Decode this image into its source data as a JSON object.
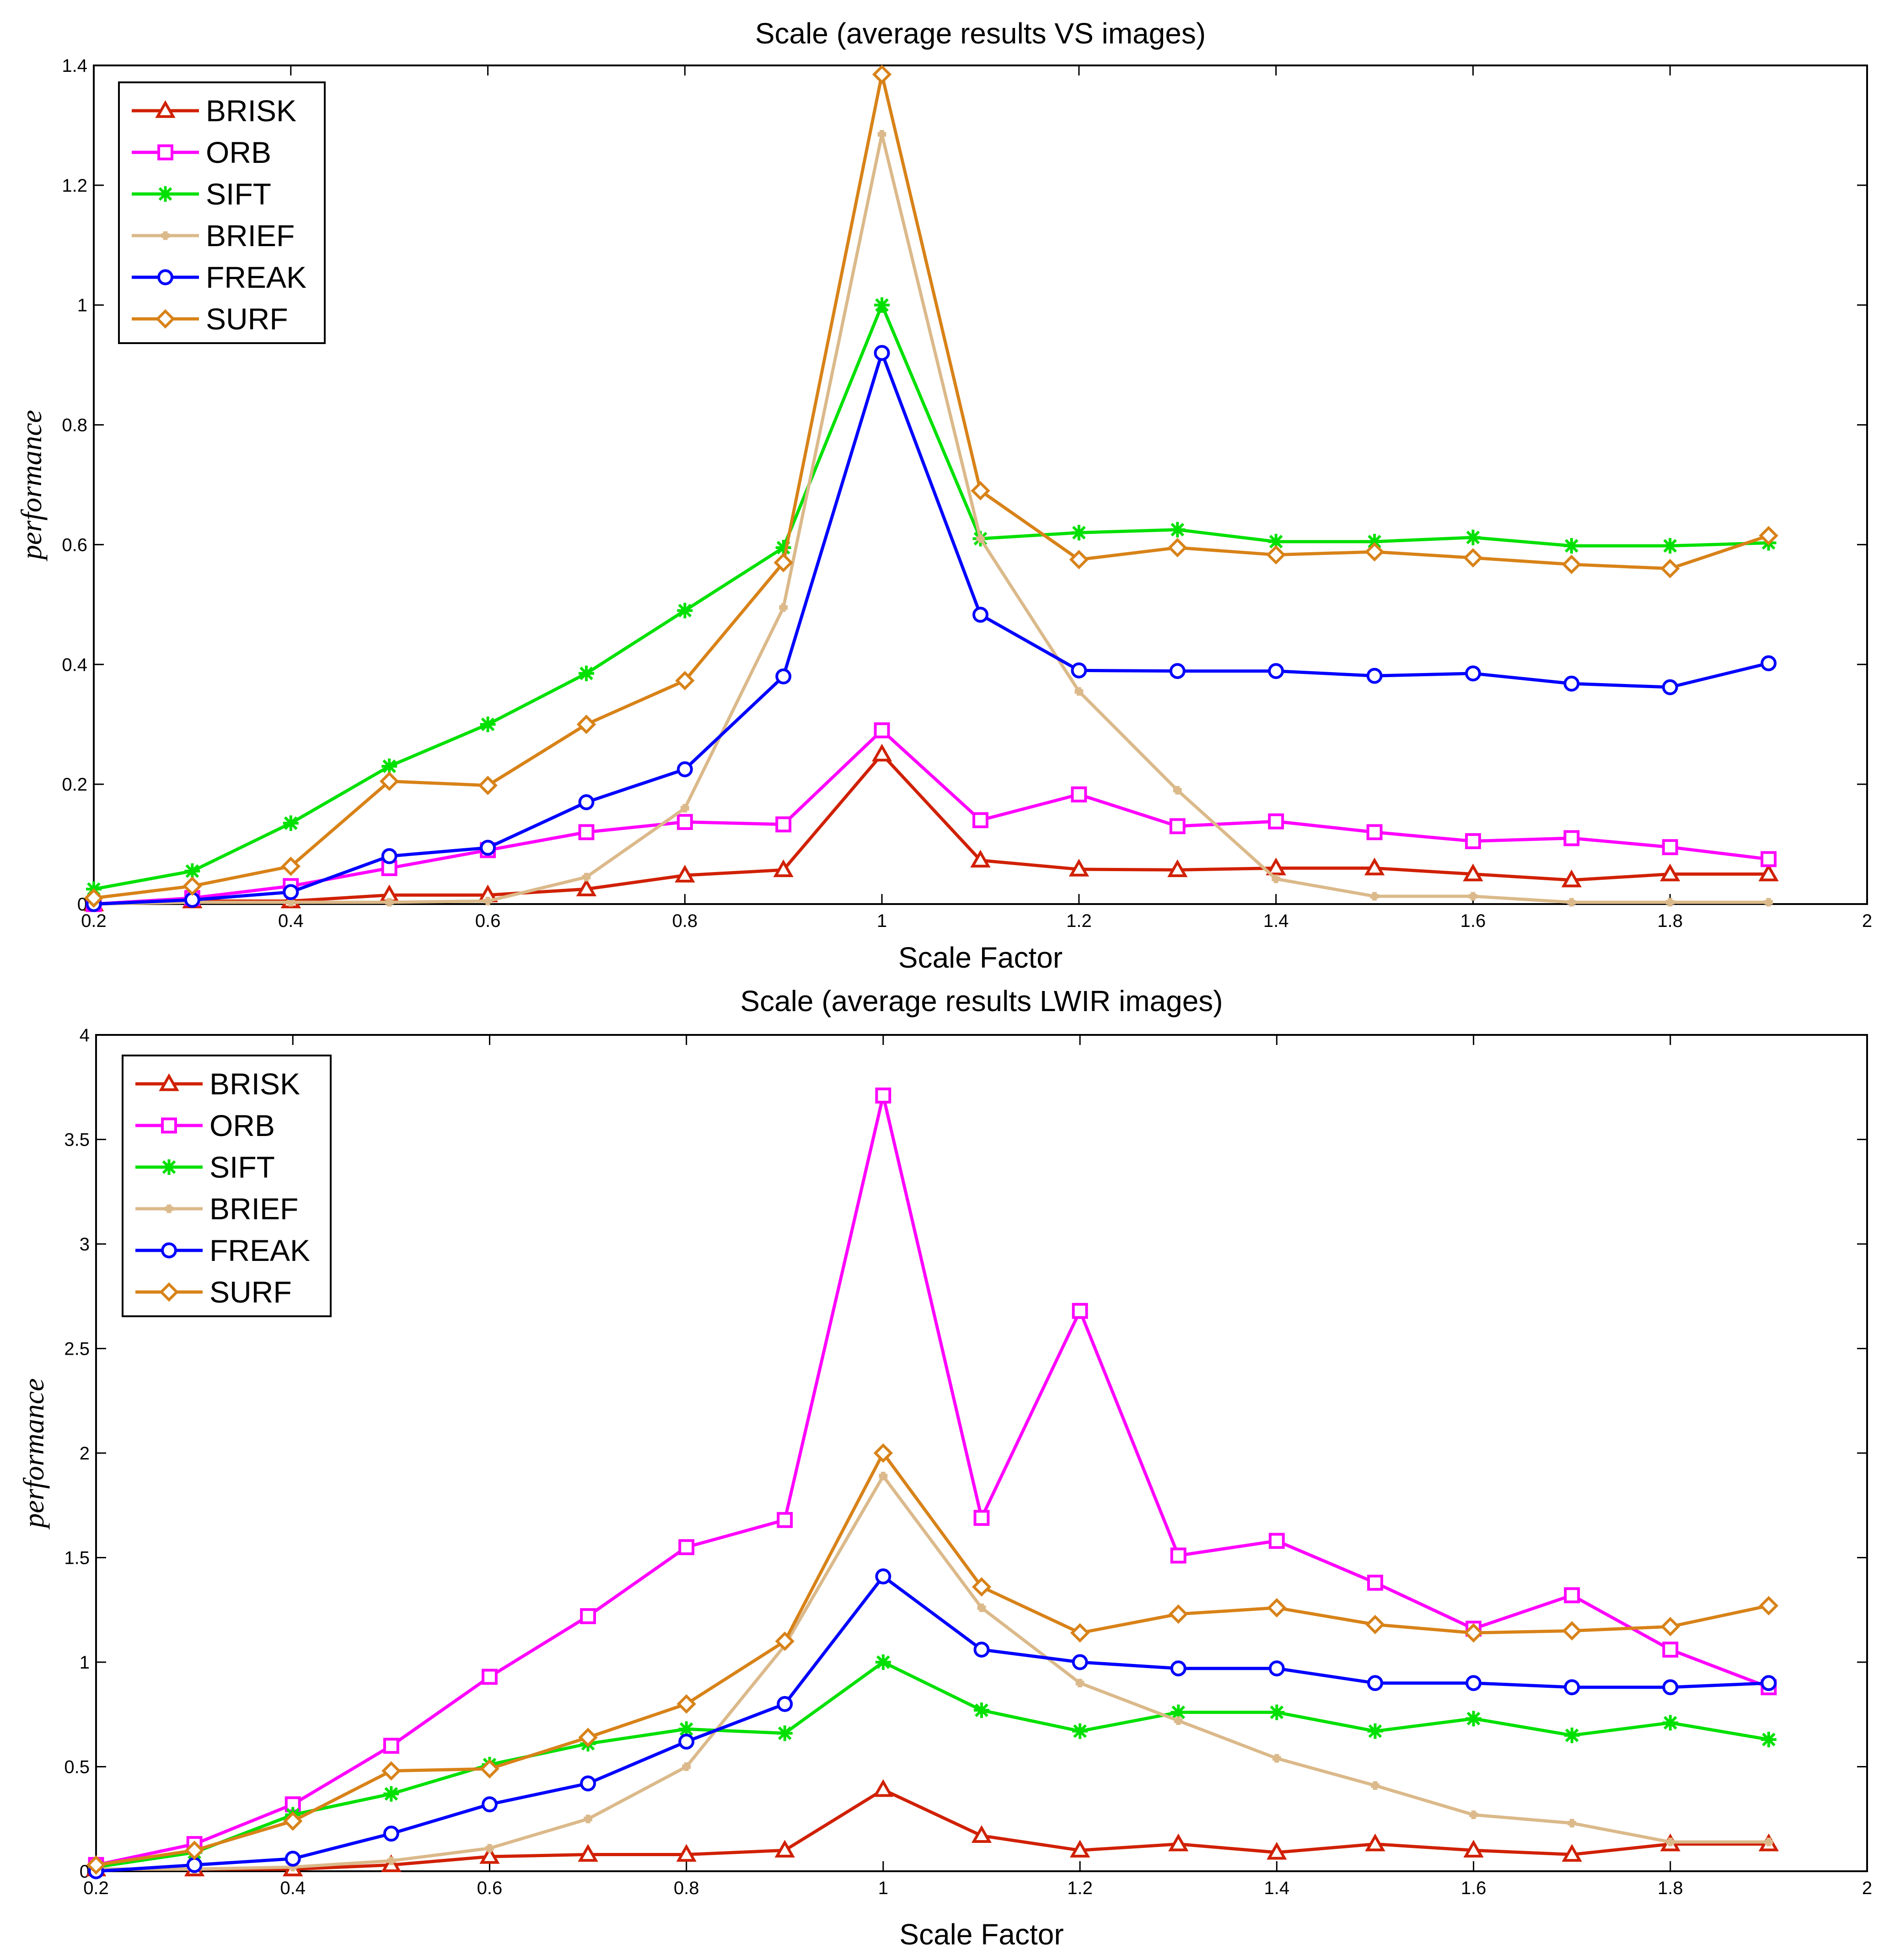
{
  "chart_data": [
    {
      "type": "line",
      "title": "Scale (average results VS images)",
      "xlabel": "Scale Factor",
      "ylabel": "performance",
      "xlim": [
        0.2,
        2
      ],
      "ylim": [
        0,
        1.4
      ],
      "xticks": [
        "0.2",
        "0.4",
        "0.6",
        "0.8",
        "1",
        "1.2",
        "1.4",
        "1.6",
        "1.8",
        "2"
      ],
      "yticks": [
        "0",
        "0.2",
        "0.4",
        "0.6",
        "0.8",
        "1",
        "1.2",
        "1.4"
      ],
      "legend_position": "top-left",
      "x": [
        0.2,
        0.3,
        0.4,
        0.5,
        0.6,
        0.7,
        0.8,
        0.9,
        1.0,
        1.1,
        1.2,
        1.3,
        1.4,
        1.5,
        1.6,
        1.7,
        1.8,
        1.9
      ],
      "series": [
        {
          "name": "BRISK",
          "color": "#d02000",
          "marker": "triangle",
          "values": [
            0.0,
            0.005,
            0.005,
            0.015,
            0.015,
            0.025,
            0.048,
            0.057,
            0.25,
            0.073,
            0.058,
            0.057,
            0.06,
            0.06,
            0.05,
            0.04,
            0.05,
            0.05
          ]
        },
        {
          "name": "ORB",
          "color": "#ff00ff",
          "marker": "square",
          "values": [
            0.0,
            0.01,
            0.03,
            0.06,
            0.09,
            0.12,
            0.137,
            0.133,
            0.29,
            0.14,
            0.183,
            0.13,
            0.138,
            0.12,
            0.105,
            0.11,
            0.095,
            0.075
          ]
        },
        {
          "name": "SIFT",
          "color": "#00e000",
          "marker": "star",
          "values": [
            0.025,
            0.055,
            0.135,
            0.23,
            0.3,
            0.385,
            0.49,
            0.595,
            1.0,
            0.61,
            0.62,
            0.625,
            0.605,
            0.605,
            0.612,
            0.598,
            0.598,
            0.603
          ]
        },
        {
          "name": "BRIEF",
          "color": "#dbb98a",
          "marker": "plus",
          "values": [
            0.0,
            0.003,
            0.003,
            0.003,
            0.005,
            0.045,
            0.16,
            0.495,
            1.285,
            0.61,
            0.355,
            0.19,
            0.042,
            0.013,
            0.013,
            0.003,
            0.003,
            0.003
          ]
        },
        {
          "name": "FREAK",
          "color": "#0000ff",
          "marker": "circle",
          "values": [
            0.0,
            0.007,
            0.02,
            0.08,
            0.094,
            0.17,
            0.225,
            0.38,
            0.92,
            0.483,
            0.39,
            0.389,
            0.389,
            0.381,
            0.385,
            0.368,
            0.362,
            0.402
          ]
        },
        {
          "name": "SURF",
          "color": "#d88218",
          "marker": "diamond",
          "values": [
            0.01,
            0.03,
            0.063,
            0.205,
            0.198,
            0.3,
            0.373,
            0.57,
            1.385,
            0.69,
            0.575,
            0.595,
            0.583,
            0.588,
            0.578,
            0.567,
            0.56,
            0.615
          ]
        }
      ]
    },
    {
      "type": "line",
      "title": "Scale (average results LWIR images)",
      "xlabel": "Scale Factor",
      "ylabel": "performance",
      "xlim": [
        0.2,
        2
      ],
      "ylim": [
        0,
        4
      ],
      "xticks": [
        "0.2",
        "0.4",
        "0.6",
        "0.8",
        "1",
        "1.2",
        "1.4",
        "1.6",
        "1.8",
        "2"
      ],
      "yticks": [
        "0",
        "0.5",
        "1",
        "1.5",
        "2",
        "2.5",
        "3",
        "3.5",
        "4"
      ],
      "legend_position": "top-left",
      "x": [
        0.2,
        0.3,
        0.4,
        0.5,
        0.6,
        0.7,
        0.8,
        0.9,
        1.0,
        1.1,
        1.2,
        1.3,
        1.4,
        1.5,
        1.6,
        1.7,
        1.8,
        1.9
      ],
      "series": [
        {
          "name": "BRISK",
          "color": "#d02000",
          "marker": "triangle",
          "values": [
            0.01,
            0.01,
            0.01,
            0.03,
            0.07,
            0.08,
            0.08,
            0.1,
            0.39,
            0.17,
            0.1,
            0.13,
            0.09,
            0.13,
            0.1,
            0.08,
            0.13,
            0.13
          ]
        },
        {
          "name": "ORB",
          "color": "#ff00ff",
          "marker": "square",
          "values": [
            0.03,
            0.13,
            0.32,
            0.6,
            0.93,
            1.22,
            1.55,
            1.68,
            3.71,
            1.69,
            2.68,
            1.51,
            1.58,
            1.38,
            1.16,
            1.32,
            1.06,
            0.88
          ]
        },
        {
          "name": "SIFT",
          "color": "#00e000",
          "marker": "star",
          "values": [
            0.02,
            0.09,
            0.27,
            0.37,
            0.51,
            0.61,
            0.68,
            0.66,
            1.0,
            0.77,
            0.67,
            0.76,
            0.76,
            0.67,
            0.73,
            0.65,
            0.71,
            0.63
          ]
        },
        {
          "name": "BRIEF",
          "color": "#dbb98a",
          "marker": "plus",
          "values": [
            0.01,
            0.01,
            0.02,
            0.05,
            0.11,
            0.25,
            0.5,
            1.08,
            1.89,
            1.26,
            0.9,
            0.72,
            0.54,
            0.41,
            0.27,
            0.23,
            0.14,
            0.14
          ]
        },
        {
          "name": "FREAK",
          "color": "#0000ff",
          "marker": "circle",
          "values": [
            0.0,
            0.03,
            0.06,
            0.18,
            0.32,
            0.42,
            0.62,
            0.8,
            1.41,
            1.06,
            1.0,
            0.97,
            0.97,
            0.9,
            0.9,
            0.88,
            0.88,
            0.9
          ]
        },
        {
          "name": "SURF",
          "color": "#d88218",
          "marker": "diamond",
          "values": [
            0.03,
            0.1,
            0.24,
            0.48,
            0.49,
            0.64,
            0.8,
            1.1,
            2.0,
            1.36,
            1.14,
            1.23,
            1.26,
            1.18,
            1.14,
            1.15,
            1.17,
            1.27
          ]
        }
      ]
    }
  ]
}
